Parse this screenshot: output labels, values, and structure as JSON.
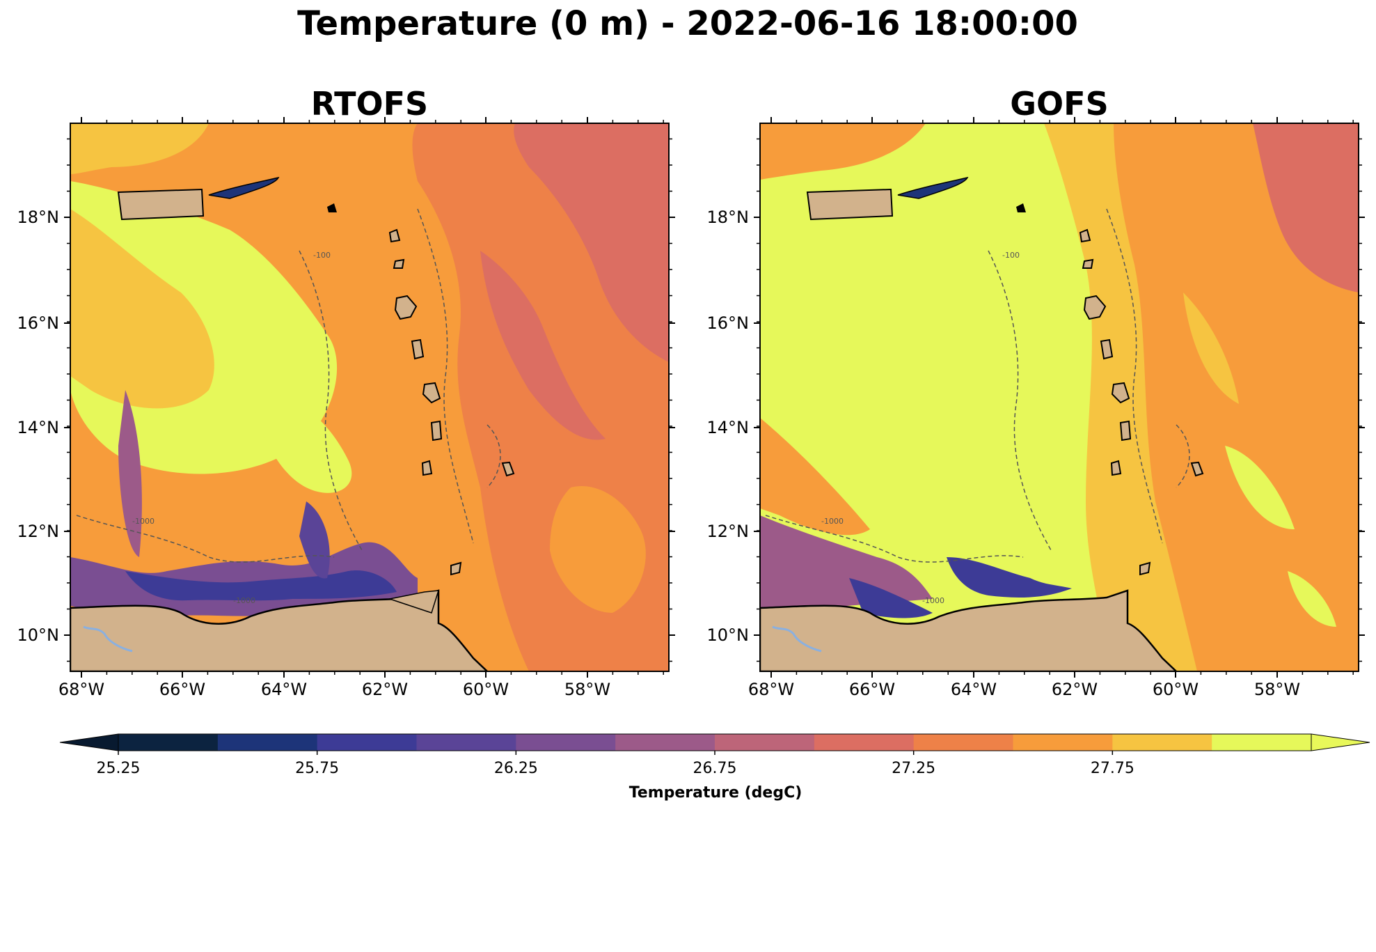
{
  "figure": {
    "title": "Temperature (0 m) - 2022-06-16 18:00:00"
  },
  "panels": [
    {
      "title": "RTOFS"
    },
    {
      "title": "GOFS"
    }
  ],
  "axes": {
    "lon_ticks": [
      "68°W",
      "66°W",
      "64°W",
      "62°W",
      "60°W",
      "58°W"
    ],
    "lat_ticks": [
      "18°N",
      "16°N",
      "14°N",
      "12°N",
      "10°N"
    ]
  },
  "contour_labels": [
    "-100",
    "-1000"
  ],
  "colorbar": {
    "label": "Temperature (degC)",
    "tick_labels": [
      "25.25",
      "25.75",
      "26.25",
      "26.75",
      "27.25",
      "27.75"
    ],
    "colors": [
      "#0c2340",
      "#1d3479",
      "#3d3b96",
      "#5a4497",
      "#7a4e92",
      "#9c5a89",
      "#bd6579",
      "#dc6e62",
      "#ee8148",
      "#f79c3b",
      "#f6c441",
      "#e6f85a"
    ],
    "under_color": "#081a30",
    "over_color": "#e8f85a"
  },
  "map_colors": {
    "land": "#d2b28c",
    "river": "#8ab0e0",
    "coast": "#000000"
  }
}
